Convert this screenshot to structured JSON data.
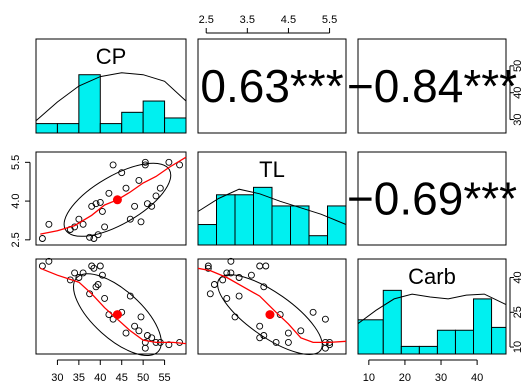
{
  "chart_data": {
    "type": "scatter-matrix",
    "variables": [
      "CP",
      "TL",
      "Carb"
    ],
    "ranges": {
      "CP": [
        25,
        60
      ],
      "TL": [
        2.3,
        5.9
      ],
      "Carb": [
        7,
        48
      ]
    },
    "ticks": {
      "CP": [
        30,
        35,
        40,
        45,
        50,
        55
      ],
      "TL": [
        2.5,
        3.5,
        4.5,
        5.5
      ],
      "TL_left": [
        2.5,
        4.0,
        5.5
      ],
      "Carb": [
        10,
        20,
        30,
        40
      ]
    },
    "right_axis_tick_labels": {
      "row1": [
        "50",
        "40",
        "30"
      ],
      "row3": [
        "40",
        "25",
        "10"
      ]
    },
    "correlations": [
      {
        "row": 0,
        "col": 1,
        "label": "0.63***"
      },
      {
        "row": 0,
        "col": 2,
        "label": "−0.84***"
      },
      {
        "row": 1,
        "col": 2,
        "label": "−0.69***"
      }
    ],
    "histograms": {
      "CP": {
        "breaks": [
          25,
          30,
          35,
          40,
          45,
          50,
          55,
          60
        ],
        "heights": [
          0.1,
          0.1,
          0.62,
          0.1,
          0.22,
          0.34,
          0.16
        ],
        "density": [
          [
            25,
            0.13
          ],
          [
            30,
            0.33
          ],
          [
            35,
            0.5
          ],
          [
            40,
            0.6
          ],
          [
            45,
            0.64
          ],
          [
            50,
            0.62
          ],
          [
            55,
            0.55
          ],
          [
            60,
            0.34
          ]
        ]
      },
      "TL": {
        "breaks": [
          2.3,
          2.75,
          3.2,
          3.65,
          4.1,
          4.55,
          5.0,
          5.45,
          5.9
        ],
        "heights": [
          0.22,
          0.54,
          0.54,
          0.62,
          0.42,
          0.42,
          0.1,
          0.42
        ],
        "density": [
          [
            2.3,
            0.36
          ],
          [
            2.8,
            0.5
          ],
          [
            3.3,
            0.6
          ],
          [
            3.8,
            0.55
          ],
          [
            4.3,
            0.47
          ],
          [
            4.8,
            0.4
          ],
          [
            5.3,
            0.33
          ],
          [
            5.9,
            0.22
          ]
        ]
      },
      "Carb": {
        "breaks": [
          7,
          14,
          19,
          24,
          29,
          34,
          39,
          44,
          48
        ],
        "heights": [
          0.36,
          0.67,
          0.08,
          0.08,
          0.25,
          0.25,
          0.58,
          0.28
        ],
        "density": [
          [
            7,
            0.32
          ],
          [
            12,
            0.46
          ],
          [
            17,
            0.58
          ],
          [
            22,
            0.63
          ],
          [
            27,
            0.6
          ],
          [
            32,
            0.58
          ],
          [
            37,
            0.62
          ],
          [
            42,
            0.63
          ],
          [
            48,
            0.52
          ]
        ]
      }
    },
    "points": [
      {
        "CP": 26.5,
        "TL": 2.55,
        "Carb": 45
      },
      {
        "CP": 28,
        "TL": 3.1,
        "Carb": 47
      },
      {
        "CP": 33,
        "TL": 2.9,
        "Carb": 39
      },
      {
        "CP": 34,
        "TL": 3.0,
        "Carb": 42
      },
      {
        "CP": 35,
        "TL": 3.3,
        "Carb": 40
      },
      {
        "CP": 36,
        "TL": 3.1,
        "Carb": 42
      },
      {
        "CP": 37.5,
        "TL": 2.6,
        "Carb": 33
      },
      {
        "CP": 38,
        "TL": 3.8,
        "Carb": 45
      },
      {
        "CP": 38.5,
        "TL": 2.55,
        "Carb": 44
      },
      {
        "CP": 39,
        "TL": 3.9,
        "Carb": 36
      },
      {
        "CP": 39.5,
        "TL": 2.7,
        "Carb": 37
      },
      {
        "CP": 40,
        "TL": 3.95,
        "Carb": 45
      },
      {
        "CP": 40.5,
        "TL": 3.6,
        "Carb": 41
      },
      {
        "CP": 41,
        "TL": 3.0,
        "Carb": 31
      },
      {
        "CP": 42,
        "TL": 4.3,
        "Carb": 24
      },
      {
        "CP": 43,
        "TL": 5.4,
        "Carb": 22
      },
      {
        "CP": 45,
        "TL": 5.1,
        "Carb": 25
      },
      {
        "CP": 46,
        "TL": 4.5,
        "Carb": 16
      },
      {
        "CP": 47,
        "TL": 3.3,
        "Carb": 32
      },
      {
        "CP": 48,
        "TL": 3.8,
        "Carb": 19
      },
      {
        "CP": 49,
        "TL": 4.8,
        "Carb": 17
      },
      {
        "CP": 49.5,
        "TL": 3.2,
        "Carb": 23
      },
      {
        "CP": 50.5,
        "TL": 5.5,
        "Carb": 12
      },
      {
        "CP": 50.5,
        "TL": 5.4,
        "Carb": 9.5
      },
      {
        "CP": 51,
        "TL": 3.9,
        "Carb": 15
      },
      {
        "CP": 52,
        "TL": 3.8,
        "Carb": 14
      },
      {
        "CP": 53,
        "TL": 4.2,
        "Carb": 12
      },
      {
        "CP": 54,
        "TL": 4.5,
        "Carb": 12
      },
      {
        "CP": 56,
        "TL": 5.5,
        "Carb": 11
      },
      {
        "CP": 58.5,
        "TL": 5.4,
        "Carb": 12
      }
    ],
    "smooth": {
      "CP_TL": [
        [
          26,
          2.72
        ],
        [
          30,
          2.85
        ],
        [
          34,
          3.05
        ],
        [
          38,
          3.45
        ],
        [
          41,
          3.85
        ],
        [
          44,
          4.05
        ],
        [
          47,
          4.35
        ],
        [
          50,
          4.7
        ],
        [
          53,
          4.95
        ],
        [
          56,
          5.3
        ],
        [
          60,
          5.7
        ]
      ],
      "CP_Carb": [
        [
          26,
          44
        ],
        [
          30,
          41
        ],
        [
          35,
          38
        ],
        [
          38,
          33
        ],
        [
          41,
          27
        ],
        [
          44,
          22
        ],
        [
          47,
          17
        ],
        [
          50,
          13
        ],
        [
          53,
          12
        ],
        [
          57,
          12
        ],
        [
          60,
          11.5
        ]
      ],
      "TL_Carb": [
        [
          2.3,
          44
        ],
        [
          2.6,
          43
        ],
        [
          3.0,
          40
        ],
        [
          3.4,
          36
        ],
        [
          3.8,
          32
        ],
        [
          4.2,
          25
        ],
        [
          4.5,
          20
        ],
        [
          4.8,
          14
        ],
        [
          5.1,
          12
        ],
        [
          5.5,
          12
        ],
        [
          5.9,
          12.5
        ]
      ]
    },
    "ellipses": {
      "CP_TL": {
        "cx": 44,
        "cy": 4.05,
        "rx_px": 60,
        "ry_px": 24,
        "angle": -30
      },
      "CP_Carb": {
        "cx": 44,
        "cy": 24,
        "rx_px": 55,
        "ry_px": 24,
        "angle": 42
      },
      "TL_Carb": {
        "cx": 4.05,
        "cy": 24,
        "rx_px": 62,
        "ry_px": 22,
        "angle": 35
      }
    },
    "colors": {
      "bar_fill": "#00f0f0",
      "smooth": "#ff0000",
      "centroid": "#ff0000"
    }
  }
}
